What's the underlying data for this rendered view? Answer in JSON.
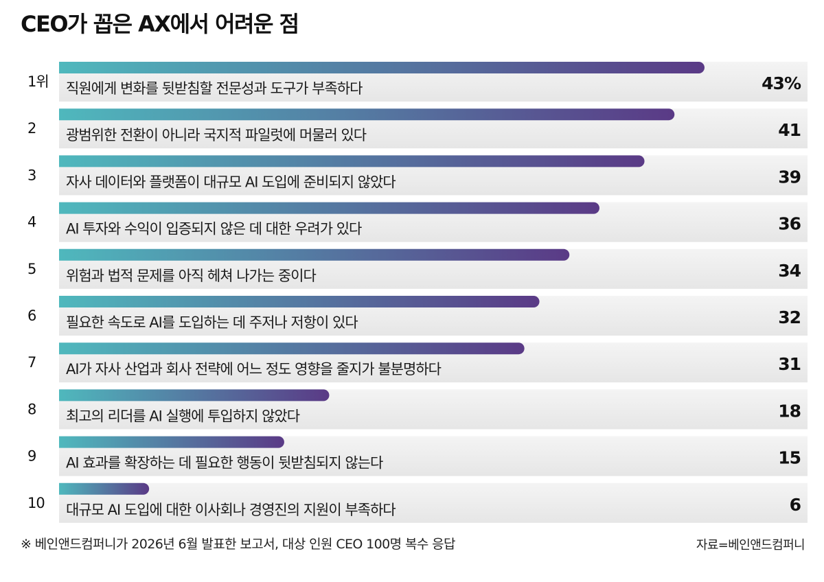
{
  "chart_data": {
    "type": "bar",
    "orientation": "horizontal",
    "title": "CEO가 꼽은 AX에서 어려운 점",
    "categories": [
      "직원에게 변화를 뒷받침할 전문성과 도구가 부족하다",
      "광범위한 전환이 아니라 국지적 파일럿에 머물러 있다",
      "자사 데이터와 플랫폼이 대규모 AI 도입에 준비되지 않았다",
      "AI 투자와 수익이 입증되지 않은 데 대한 우려가 있다",
      "위험과 법적 문제를 아직 헤쳐 나가는 중이다",
      "필요한 속도로 AI를 도입하는 데 주저나 저항이 있다",
      "AI가 자사 산업과 회사 전략에 어느 정도 영향을 줄지가 불분명하다",
      "최고의 리더를 AI 실행에 투입하지 않았다",
      "AI 효과를 확장하는 데 필요한 행동이 뒷받침되지 않는다",
      "대규모 AI 도입에 대한 이사회나 경영진의 지원이 부족하다"
    ],
    "ranks": [
      "1위",
      "2",
      "3",
      "4",
      "5",
      "6",
      "7",
      "8",
      "9",
      "10"
    ],
    "values": [
      43,
      41,
      39,
      36,
      34,
      32,
      31,
      18,
      15,
      6
    ],
    "value_labels": [
      "43%",
      "41",
      "39",
      "36",
      "34",
      "32",
      "31",
      "18",
      "15",
      "6"
    ],
    "xlim": [
      0,
      43
    ],
    "grid": false,
    "legend": "none",
    "colors": {
      "bar_start": "#4fb8bd",
      "bar_end": "#5a3a86",
      "row_bg": "#ececec"
    }
  },
  "footnote": "※ 베인앤드컴퍼니가 2026년 6월 발표한 보고서, 대상 인원 CEO 100명 복수 응답",
  "source": "자료=베인앤드컴퍼니"
}
